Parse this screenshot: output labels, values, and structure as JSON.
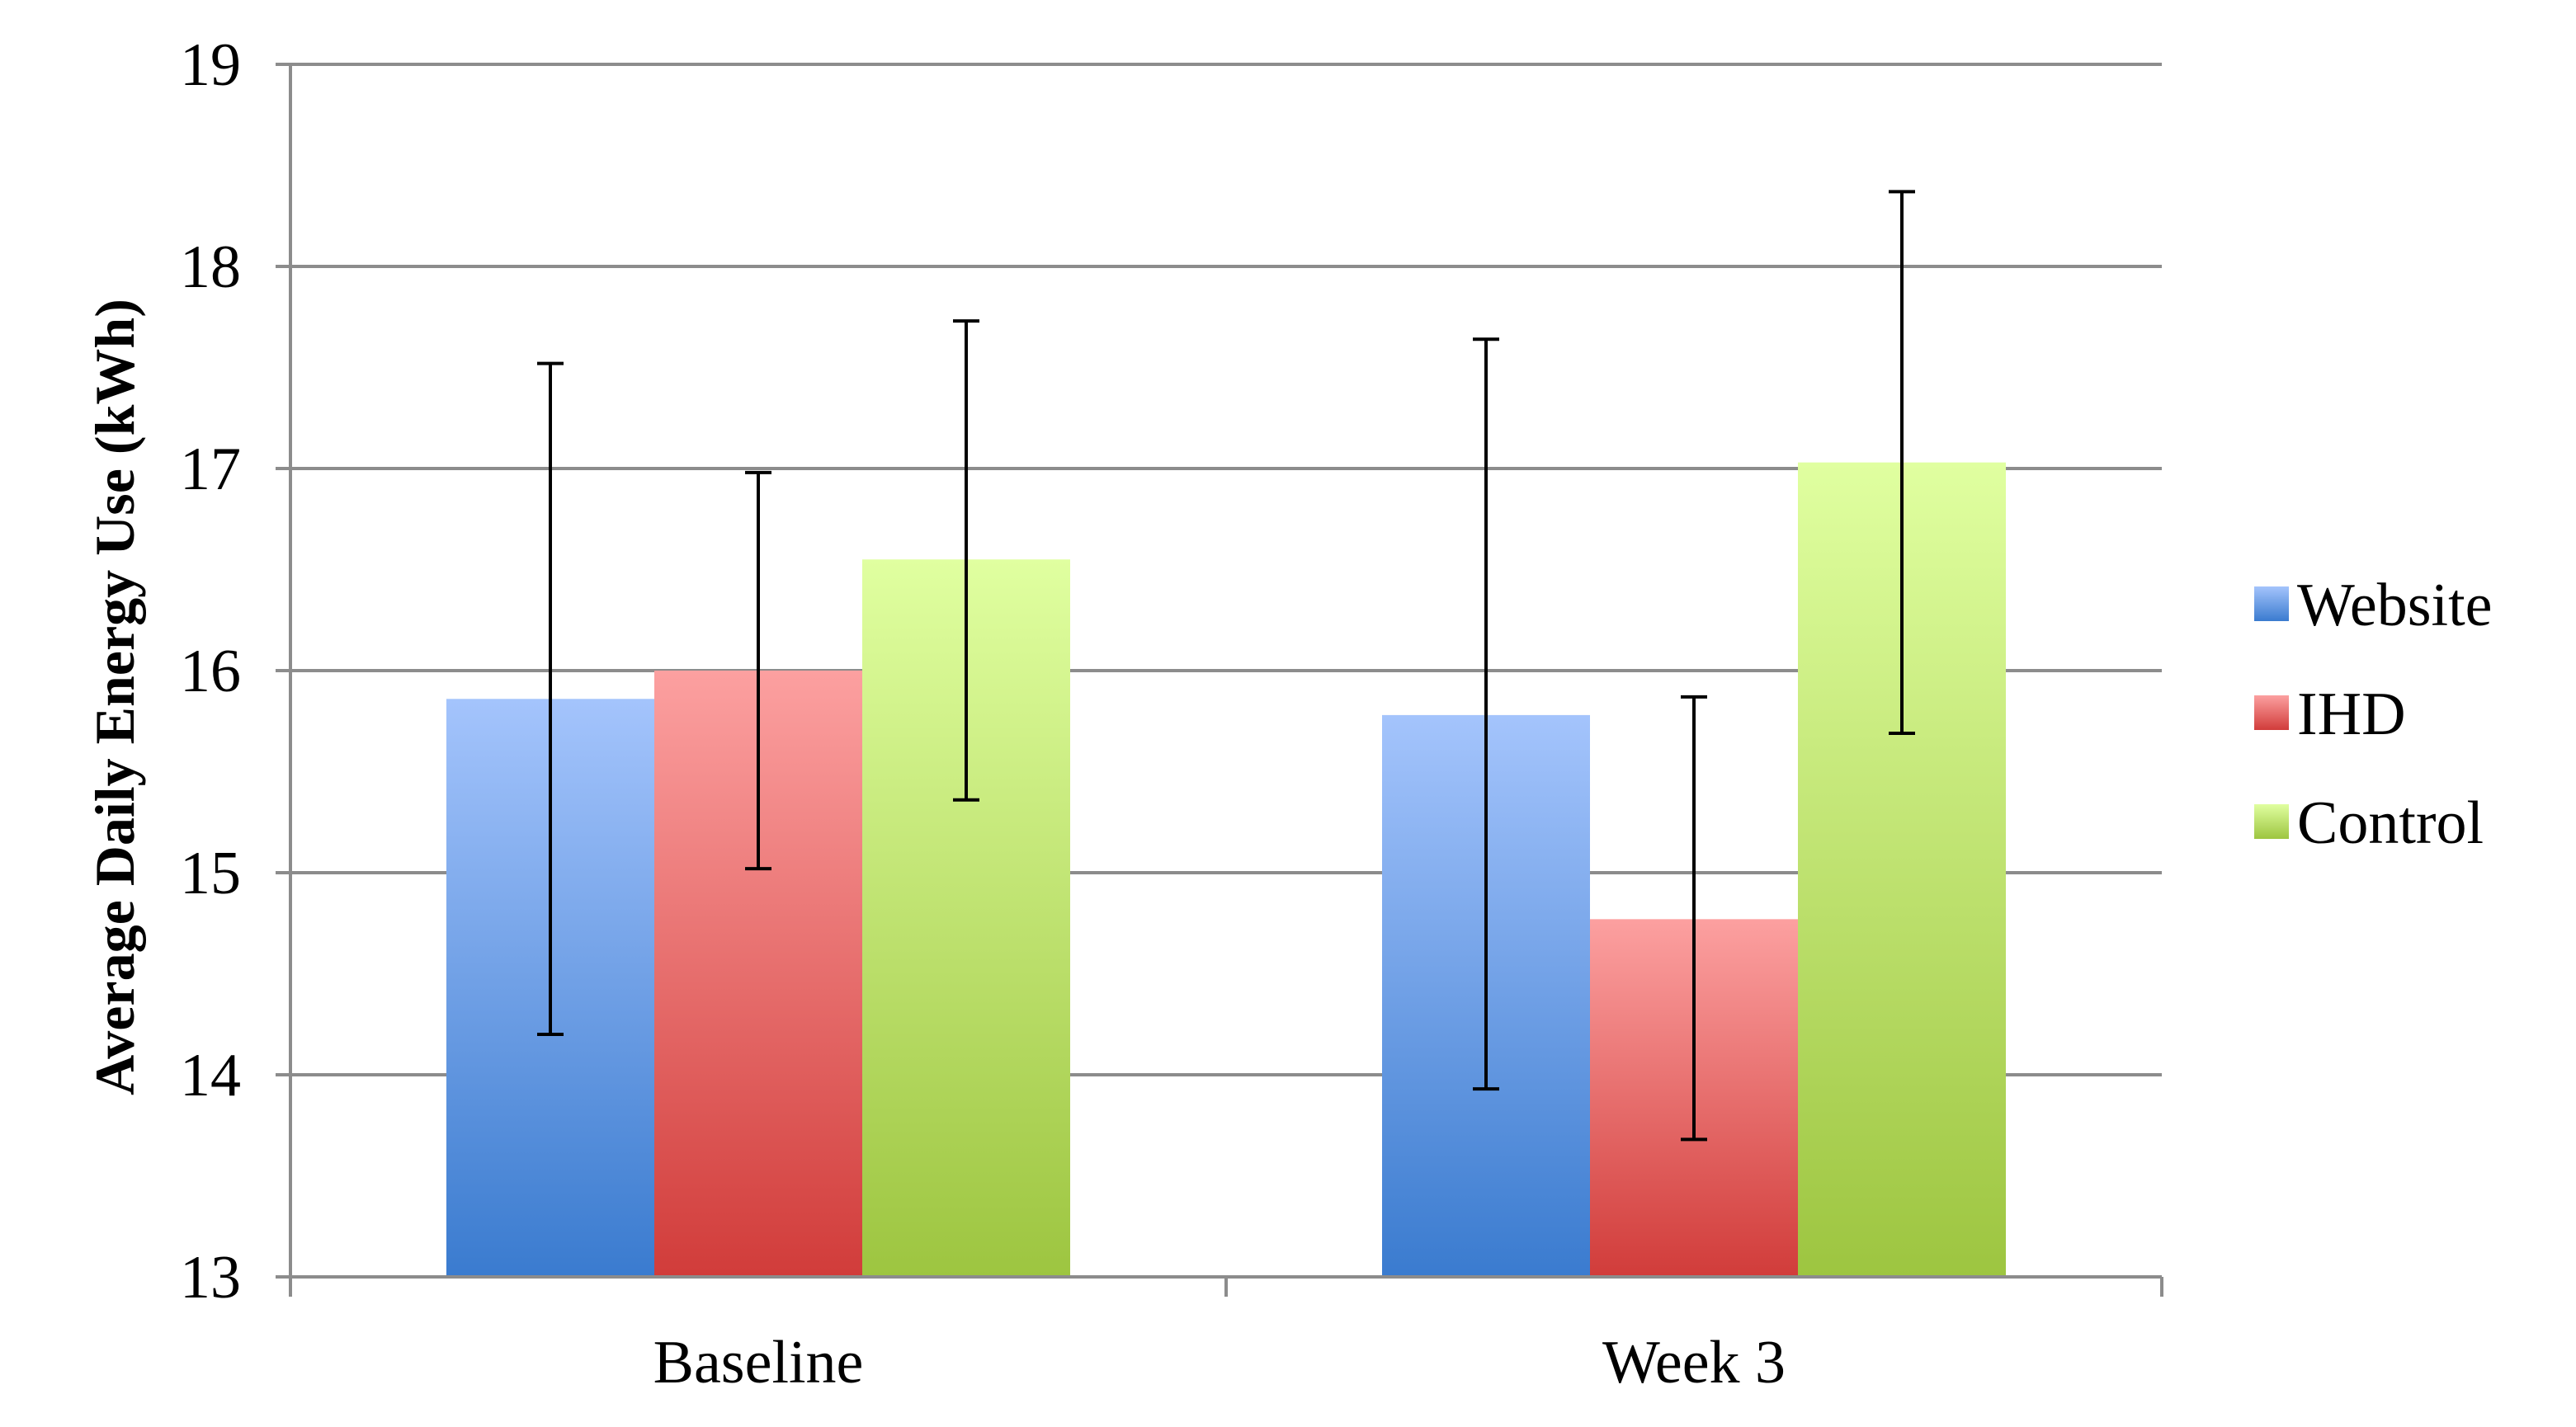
{
  "chart_data": {
    "type": "bar",
    "title": "",
    "xlabel": "",
    "ylabel": "Average Daily Energy Use (kWh)",
    "ylim": [
      13,
      19
    ],
    "yticks": [
      13,
      14,
      15,
      16,
      17,
      18,
      19
    ],
    "grid": true,
    "legend_position": "right",
    "categories": [
      "Baseline",
      "Week 3"
    ],
    "series": [
      {
        "name": "Website",
        "values": [
          15.86,
          15.78
        ],
        "error_low": [
          14.2,
          13.93
        ],
        "error_high": [
          17.52,
          17.64
        ],
        "color_top": "#a4c4fc",
        "color_bottom": "#3a7bcf"
      },
      {
        "name": "IHD",
        "values": [
          16.0,
          14.77
        ],
        "error_low": [
          15.02,
          13.68
        ],
        "error_high": [
          16.98,
          15.87
        ],
        "color_top": "#fca0a0",
        "color_bottom": "#d13c3a"
      },
      {
        "name": "Control",
        "values": [
          16.55,
          17.03
        ],
        "error_low": [
          15.36,
          15.69
        ],
        "error_high": [
          17.73,
          18.37
        ],
        "color_top": "#e0ffa0",
        "color_bottom": "#9dc540"
      }
    ]
  }
}
